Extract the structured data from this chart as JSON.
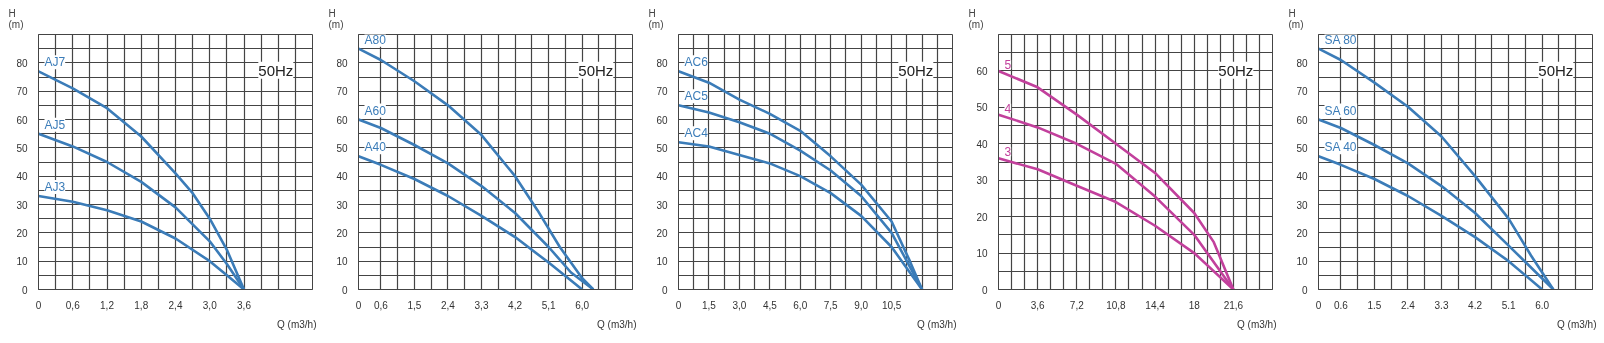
{
  "chart_data": [
    {
      "type": "line",
      "xlabel": "Q (m3/h)",
      "ylabel": "H\n(m)",
      "annotations": [
        "50Hz"
      ],
      "grid": true,
      "legend": false,
      "xlim": [
        0,
        4.8
      ],
      "ylim": [
        0,
        90
      ],
      "xticks": [
        0,
        {
          "value": 0.3,
          "label": null
        },
        {
          "value": 0.6,
          "label": "0,6"
        },
        {
          "value": 0.9,
          "label": null
        },
        {
          "value": 1.2,
          "label": "1,2"
        },
        {
          "value": 1.5,
          "label": null
        },
        {
          "value": 1.8,
          "label": "1,8"
        },
        {
          "value": 2.1,
          "label": null
        },
        {
          "value": 2.4,
          "label": "2,4"
        },
        {
          "value": 2.7,
          "label": null
        },
        {
          "value": 3.0,
          "label": "3,0"
        },
        {
          "value": 3.3,
          "label": null
        },
        {
          "value": 3.6,
          "label": "3,6"
        },
        {
          "value": 3.9,
          "label": null
        },
        {
          "value": 4.2,
          "label": null
        },
        {
          "value": 4.5,
          "label": null
        },
        {
          "value": 4.8,
          "label": null
        }
      ],
      "yticks": [
        0,
        {
          "value": 5,
          "label": null
        },
        10,
        {
          "value": 15,
          "label": null
        },
        20,
        {
          "value": 25,
          "label": null
        },
        30,
        {
          "value": 35,
          "label": null
        },
        40,
        {
          "value": 45,
          "label": null
        },
        50,
        {
          "value": 55,
          "label": null
        },
        60,
        {
          "value": 65,
          "label": null
        },
        70,
        {
          "value": 75,
          "label": null
        },
        80,
        {
          "value": 85,
          "label": null
        },
        {
          "value": 90,
          "label": null
        }
      ],
      "series": [
        {
          "name": "AJ7",
          "color": "#3b7cb8",
          "x": [
            0,
            0.6,
            1.2,
            1.8,
            2.4,
            2.7,
            3.0,
            3.3,
            3.6
          ],
          "values": [
            77,
            71,
            64,
            54,
            41,
            34,
            25,
            14,
            0
          ]
        },
        {
          "name": "AJ5",
          "color": "#3b7cb8",
          "x": [
            0,
            0.6,
            1.2,
            1.8,
            2.4,
            3.0,
            3.3,
            3.6
          ],
          "values": [
            55,
            50.5,
            45,
            38,
            29,
            17,
            9,
            0
          ]
        },
        {
          "name": "AJ3",
          "color": "#3b7cb8",
          "x": [
            0,
            0.6,
            1.2,
            1.8,
            2.4,
            3.0,
            3.3,
            3.6
          ],
          "values": [
            33,
            31,
            28,
            24,
            18,
            10,
            5,
            0
          ]
        }
      ]
    },
    {
      "type": "line",
      "xlabel": "Q (m3/h)",
      "ylabel": "H\n(m)",
      "annotations": [
        "50Hz"
      ],
      "grid": true,
      "legend": false,
      "xlim": [
        0,
        7.35
      ],
      "ylim": [
        0,
        90
      ],
      "xticks": [
        0,
        {
          "value": 0.6,
          "label": "0,6"
        },
        {
          "value": 1.05,
          "label": null
        },
        {
          "value": 1.5,
          "label": "1,5"
        },
        {
          "value": 1.95,
          "label": null
        },
        {
          "value": 2.4,
          "label": "2,4"
        },
        {
          "value": 2.85,
          "label": null
        },
        {
          "value": 3.3,
          "label": "3,3"
        },
        {
          "value": 3.75,
          "label": null
        },
        {
          "value": 4.2,
          "label": "4,2"
        },
        {
          "value": 4.65,
          "label": null
        },
        {
          "value": 5.1,
          "label": "5,1"
        },
        {
          "value": 5.55,
          "label": null
        },
        {
          "value": 6.0,
          "label": "6,0"
        },
        {
          "value": 6.45,
          "label": null
        },
        {
          "value": 6.9,
          "label": null
        },
        {
          "value": 7.35,
          "label": null
        }
      ],
      "yticks": [
        0,
        {
          "value": 5,
          "label": null
        },
        10,
        {
          "value": 15,
          "label": null
        },
        20,
        {
          "value": 25,
          "label": null
        },
        30,
        {
          "value": 35,
          "label": null
        },
        40,
        {
          "value": 45,
          "label": null
        },
        50,
        {
          "value": 55,
          "label": null
        },
        60,
        {
          "value": 65,
          "label": null
        },
        70,
        {
          "value": 75,
          "label": null
        },
        80,
        {
          "value": 85,
          "label": null
        },
        {
          "value": 90,
          "label": null
        }
      ],
      "series": [
        {
          "name": "A80",
          "color": "#3b7cb8",
          "x": [
            0,
            0.6,
            1.5,
            2.4,
            3.3,
            4.2,
            4.8,
            5.4,
            6.0,
            6.3
          ],
          "values": [
            85,
            81,
            73.5,
            65,
            54.5,
            40,
            28,
            15,
            4,
            0
          ]
        },
        {
          "name": "A60",
          "color": "#3b7cb8",
          "x": [
            0,
            0.6,
            1.5,
            2.4,
            3.3,
            4.2,
            5.1,
            5.7,
            6.3
          ],
          "values": [
            60,
            57,
            51,
            44.5,
            36.5,
            27,
            15,
            6,
            0
          ]
        },
        {
          "name": "A40",
          "color": "#3b7cb8",
          "x": [
            0,
            0.6,
            1.5,
            2.4,
            3.3,
            4.2,
            5.1,
            6.0
          ],
          "values": [
            47,
            44,
            39,
            33,
            26,
            18.5,
            9.5,
            0
          ]
        }
      ]
    },
    {
      "type": "line",
      "xlabel": "Q (m3/h)",
      "ylabel": "H\n(m)",
      "annotations": [
        "50Hz"
      ],
      "grid": true,
      "legend": false,
      "xlim": [
        0,
        13.5
      ],
      "ylim": [
        0,
        90
      ],
      "xticks": [
        0,
        {
          "value": 0.75,
          "label": null
        },
        {
          "value": 1.5,
          "label": "1,5"
        },
        {
          "value": 2.25,
          "label": null
        },
        {
          "value": 3.0,
          "label": "3,0"
        },
        {
          "value": 3.75,
          "label": null
        },
        {
          "value": 4.5,
          "label": "4,5"
        },
        {
          "value": 5.25,
          "label": null
        },
        {
          "value": 6.0,
          "label": "6,0"
        },
        {
          "value": 6.75,
          "label": null
        },
        {
          "value": 7.5,
          "label": "7,5"
        },
        {
          "value": 8.25,
          "label": null
        },
        {
          "value": 9.0,
          "label": "9,0"
        },
        {
          "value": 9.75,
          "label": null
        },
        {
          "value": 10.5,
          "label": "10,5"
        },
        {
          "value": 11.25,
          "label": null
        },
        {
          "value": 12.0,
          "label": null
        },
        {
          "value": 12.75,
          "label": null
        },
        {
          "value": 13.5,
          "label": null
        }
      ],
      "yticks": [
        0,
        {
          "value": 5,
          "label": null
        },
        10,
        {
          "value": 15,
          "label": null
        },
        20,
        {
          "value": 25,
          "label": null
        },
        30,
        {
          "value": 35,
          "label": null
        },
        40,
        {
          "value": 45,
          "label": null
        },
        50,
        {
          "value": 55,
          "label": null
        },
        60,
        {
          "value": 65,
          "label": null
        },
        70,
        {
          "value": 75,
          "label": null
        },
        80,
        {
          "value": 85,
          "label": null
        },
        {
          "value": 90,
          "label": null
        }
      ],
      "series": [
        {
          "name": "AC6",
          "color": "#3b7cb8",
          "x": [
            0,
            1.5,
            3,
            4.5,
            6,
            7.5,
            9,
            10.5,
            11.4,
            12
          ],
          "values": [
            77,
            73,
            67,
            62,
            56,
            47,
            37,
            24,
            10,
            0
          ]
        },
        {
          "name": "AC5",
          "color": "#3b7cb8",
          "x": [
            0,
            1.5,
            3,
            4.5,
            6,
            7.5,
            9,
            10.5,
            12
          ],
          "values": [
            65,
            62.5,
            59,
            55,
            49,
            42,
            33,
            20,
            0
          ]
        },
        {
          "name": "AC4",
          "color": "#3b7cb8",
          "x": [
            0,
            1.5,
            3,
            4.5,
            6,
            7.5,
            9,
            10.5,
            12
          ],
          "values": [
            52,
            50.5,
            47.5,
            44.5,
            40,
            34,
            26,
            15,
            0
          ]
        }
      ]
    },
    {
      "type": "line",
      "xlabel": "Q (m3/h)",
      "ylabel": "H\n(m)",
      "annotations": [
        "50Hz"
      ],
      "grid": true,
      "legend": false,
      "xlim": [
        0,
        25.2
      ],
      "ylim": [
        0,
        70
      ],
      "xticks": [
        0,
        {
          "value": 1.2,
          "label": null
        },
        {
          "value": 2.4,
          "label": null
        },
        {
          "value": 3.6,
          "label": "3,6"
        },
        {
          "value": 4.8,
          "label": null
        },
        {
          "value": 6.0,
          "label": null
        },
        {
          "value": 7.2,
          "label": "7,2"
        },
        {
          "value": 8.4,
          "label": null
        },
        {
          "value": 9.6,
          "label": null
        },
        {
          "value": 10.8,
          "label": "10,8"
        },
        {
          "value": 12.0,
          "label": null
        },
        {
          "value": 13.2,
          "label": null
        },
        {
          "value": 14.4,
          "label": "14,4"
        },
        {
          "value": 15.6,
          "label": null
        },
        {
          "value": 16.8,
          "label": null
        },
        18,
        {
          "value": 19.2,
          "label": null
        },
        {
          "value": 20.4,
          "label": null
        },
        {
          "value": 21.6,
          "label": "21,6"
        },
        {
          "value": 22.8,
          "label": null
        },
        {
          "value": 24.0,
          "label": null
        },
        {
          "value": 25.2,
          "label": null
        }
      ],
      "yticks": [
        0,
        {
          "value": 5,
          "label": null
        },
        10,
        {
          "value": 15,
          "label": null
        },
        20,
        {
          "value": 25,
          "label": null
        },
        30,
        {
          "value": 35,
          "label": null
        },
        40,
        {
          "value": 45,
          "label": null
        },
        50,
        {
          "value": 55,
          "label": null
        },
        60,
        {
          "value": 65,
          "label": null
        },
        {
          "value": 70,
          "label": null
        }
      ],
      "series": [
        {
          "name": "5",
          "color": "#c2409c",
          "x": [
            0,
            3.6,
            7.2,
            10.8,
            14.4,
            18,
            19.8,
            21.6
          ],
          "values": [
            60,
            55.5,
            48,
            40,
            32,
            21,
            13,
            0
          ]
        },
        {
          "name": "4",
          "color": "#c2409c",
          "x": [
            0,
            3.6,
            7.2,
            10.8,
            14.4,
            18,
            21.6
          ],
          "values": [
            48,
            44.5,
            40,
            34.5,
            25.5,
            15,
            0
          ]
        },
        {
          "name": "3",
          "color": "#c2409c",
          "x": [
            0,
            3.6,
            7.2,
            10.8,
            14.4,
            18,
            21.6
          ],
          "values": [
            36,
            33,
            28.5,
            24,
            17.5,
            10,
            0
          ]
        }
      ]
    },
    {
      "type": "line",
      "xlabel": "Q (m3/h)",
      "ylabel": "H\n(m)",
      "annotations": [
        "50Hz"
      ],
      "grid": true,
      "legend": false,
      "xlim": [
        0,
        7.35
      ],
      "ylim": [
        0,
        90
      ],
      "xticks": [
        0,
        {
          "value": 0.6,
          "label": "0.6"
        },
        {
          "value": 1.05,
          "label": null
        },
        {
          "value": 1.5,
          "label": "1.5"
        },
        {
          "value": 1.95,
          "label": null
        },
        {
          "value": 2.4,
          "label": "2.4"
        },
        {
          "value": 2.85,
          "label": null
        },
        {
          "value": 3.3,
          "label": "3.3"
        },
        {
          "value": 3.75,
          "label": null
        },
        {
          "value": 4.2,
          "label": "4.2"
        },
        {
          "value": 4.65,
          "label": null
        },
        {
          "value": 5.1,
          "label": "5.1"
        },
        {
          "value": 5.55,
          "label": null
        },
        {
          "value": 6.0,
          "label": "6.0"
        },
        {
          "value": 6.45,
          "label": null
        },
        {
          "value": 6.9,
          "label": null
        },
        {
          "value": 7.35,
          "label": null
        }
      ],
      "yticks": [
        0,
        {
          "value": 5,
          "label": null
        },
        10,
        {
          "value": 15,
          "label": null
        },
        20,
        {
          "value": 25,
          "label": null
        },
        30,
        {
          "value": 35,
          "label": null
        },
        40,
        {
          "value": 45,
          "label": null
        },
        50,
        {
          "value": 55,
          "label": null
        },
        60,
        {
          "value": 65,
          "label": null
        },
        70,
        {
          "value": 75,
          "label": null
        },
        80,
        {
          "value": 85,
          "label": null
        },
        {
          "value": 90,
          "label": null
        }
      ],
      "series": [
        {
          "name": "SA 80",
          "color": "#3b7cb8",
          "x": [
            0,
            0.6,
            1.5,
            2.4,
            3.3,
            4.2,
            5.1,
            5.7,
            6.3
          ],
          "values": [
            85,
            81,
            73,
            64.5,
            54,
            40,
            25,
            12,
            0
          ]
        },
        {
          "name": "SA 60",
          "color": "#3b7cb8",
          "x": [
            0,
            0.6,
            1.5,
            2.4,
            3.3,
            4.2,
            5.1,
            6.3
          ],
          "values": [
            60,
            57,
            51,
            44.5,
            36.5,
            27,
            15.5,
            0
          ]
        },
        {
          "name": "SA 40",
          "color": "#3b7cb8",
          "x": [
            0,
            0.6,
            1.5,
            2.4,
            3.3,
            4.2,
            5.1,
            6.0
          ],
          "values": [
            47,
            44,
            39,
            33,
            26,
            18.5,
            10,
            0
          ]
        }
      ]
    }
  ]
}
